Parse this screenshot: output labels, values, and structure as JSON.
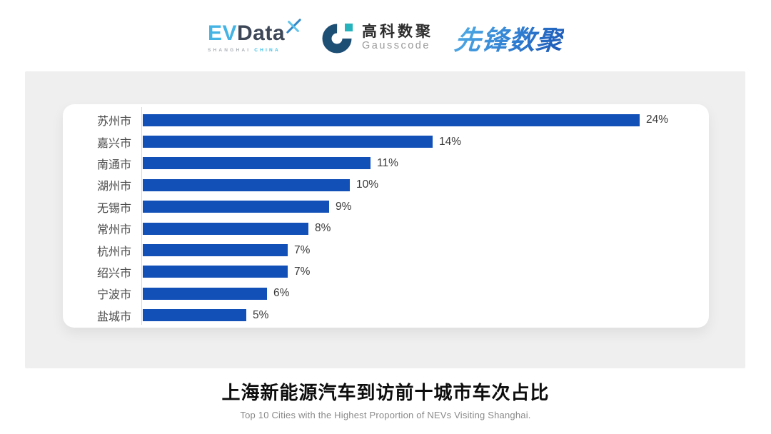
{
  "header": {
    "evdata": {
      "ev": "EV",
      "data": "Data",
      "sub_left": "SHANGHAI",
      "sub_right": "CHINA",
      "ev_color": "#45b4e4",
      "data_color": "#3d4757",
      "x_icon": "dragonfly-x-mark"
    },
    "gausscode": {
      "cn": "高科数聚",
      "en": "Gausscode",
      "g_icon": "g-ring-mark",
      "g_color": "#1d4e74",
      "square_color": "#27b3bd"
    },
    "xianfeng": {
      "text": "先锋数聚",
      "gradient_from": "#54b2e8",
      "gradient_to": "#1b55b4"
    }
  },
  "chart_data": {
    "type": "bar",
    "orientation": "horizontal",
    "title": "上海新能源汽车到访前十城市车次占比",
    "subtitle": "Top 10 Cities with the Highest Proportion of  NEVs Visiting Shanghai.",
    "categories": [
      "苏州市",
      "嘉兴市",
      "南通市",
      "湖州市",
      "无锡市",
      "常州市",
      "杭州市",
      "绍兴市",
      "宁波市",
      "盐城市"
    ],
    "values": [
      24,
      14,
      11,
      10,
      9,
      8,
      7,
      7,
      6,
      5
    ],
    "value_labels": [
      "24%",
      "14%",
      "11%",
      "10%",
      "9%",
      "8%",
      "7%",
      "7%",
      "6%",
      "5%"
    ],
    "unit": "%",
    "xlim": [
      0,
      24
    ],
    "grid": false,
    "legend": false,
    "bar_color": "#1250b8",
    "panel_color": "#efefef",
    "card_color": "#ffffff"
  },
  "footer": {
    "title": "上海新能源汽车到访前十城市车次占比",
    "subtitle": "Top 10 Cities with the Highest Proportion of  NEVs Visiting Shanghai."
  }
}
